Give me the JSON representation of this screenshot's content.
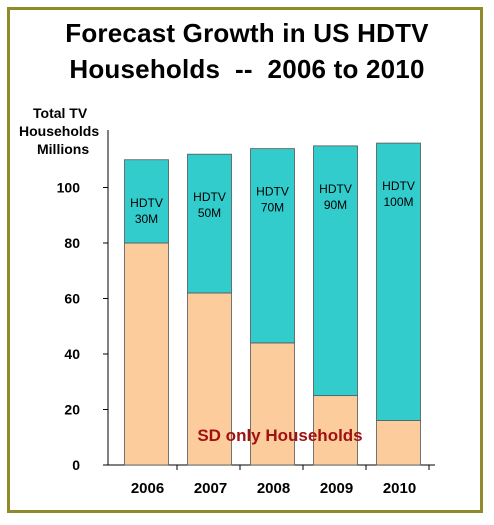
{
  "title_line1": "Forecast Growth in US HDTV",
  "title_line2": "Households  --  2006 to 2010",
  "ylabel": [
    "Total TV",
    "Households",
    "Millions"
  ],
  "colors": {
    "sd": "#fccc9c",
    "hdtv": "#33cccc",
    "annotation": "#a01212",
    "frame": "#8f8a2a"
  },
  "chart_data": {
    "type": "bar",
    "stacked": true,
    "title": "Forecast Growth in US HDTV Households  --  2006 to 2010",
    "ylabel": "Total TV Households Millions",
    "xlabel": "",
    "categories": [
      "2006",
      "2007",
      "2008",
      "2009",
      "2010"
    ],
    "ylim": [
      0,
      110
    ],
    "yticks": [
      0,
      20,
      40,
      60,
      80,
      100
    ],
    "grid": false,
    "series": [
      {
        "name": "SD only Households",
        "values": [
          80,
          62,
          44,
          25,
          16
        ]
      },
      {
        "name": "HDTV",
        "values": [
          30,
          50,
          70,
          90,
          100
        ]
      }
    ],
    "bar_labels": [
      "HDTV 30M",
      "HDTV 50M",
      "HDTV 70M",
      "HDTV 90M",
      "HDTV 100M"
    ],
    "annotation": "SD only Households"
  }
}
